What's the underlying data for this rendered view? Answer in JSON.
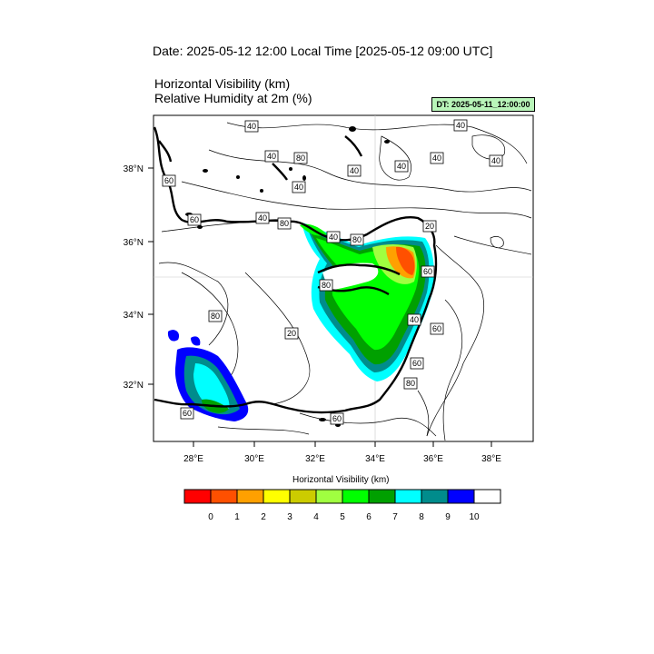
{
  "date_title": "Date: 2025-05-12  12:00 Local Time [2025-05-12  09:00 UTC]",
  "map_title_line1": "Horizontal Visibility   (km)",
  "map_title_line2": "Relative Humidity at 2m   (%)",
  "dt_label": "DT: 2025-05-11_12:00:00",
  "lat_labels": [
    "38°N",
    "36°N",
    "34°N",
    "32°N"
  ],
  "lon_labels": [
    "28°E",
    "30°E",
    "32°E",
    "34°E",
    "36°E",
    "38°E"
  ],
  "contour_labels": [
    "40",
    "40",
    "80",
    "40",
    "40",
    "40",
    "40",
    "40",
    "40",
    "60",
    "80",
    "40",
    "60",
    "20",
    "40",
    "80",
    "60",
    "80",
    "80",
    "20",
    "40",
    "60",
    "60",
    "80",
    "60",
    "60"
  ],
  "legend": {
    "title": "Horizontal Visibility  (km)",
    "ticks": [
      "0",
      "1",
      "2",
      "3",
      "4",
      "5",
      "6",
      "7",
      "8",
      "9",
      "10"
    ],
    "colors": [
      "#ff0000",
      "#ff5000",
      "#ffa000",
      "#ffff00",
      "#cccc00",
      "#a0ff40",
      "#00ff00",
      "#00a000",
      "#00ffff",
      "#008c8c",
      "#0000ff",
      "#ffffff"
    ]
  }
}
